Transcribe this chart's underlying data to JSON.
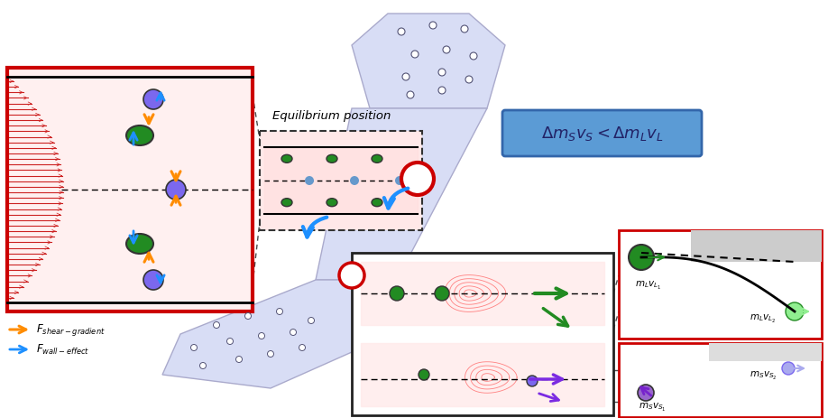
{
  "title": "",
  "bg_color": "#ffffff",
  "eq_label": "Equilibrium position",
  "formula": "$\\Delta m_S v_S < \\Delta m_L v_L$",
  "formula_bg": "#5b9bd5",
  "legend_orange": "$F_{shear-gradient}$",
  "legend_blue": "$F_{wall-effect}$",
  "red_box_border": "#cc0000",
  "green_large_color": "#228b22",
  "green_small_color": "#90ee90",
  "purple_color": "#7b68ee",
  "orange_arrow": "#ff8c00",
  "blue_arrow": "#1e90ff",
  "flow_line_color": "#ff6666"
}
